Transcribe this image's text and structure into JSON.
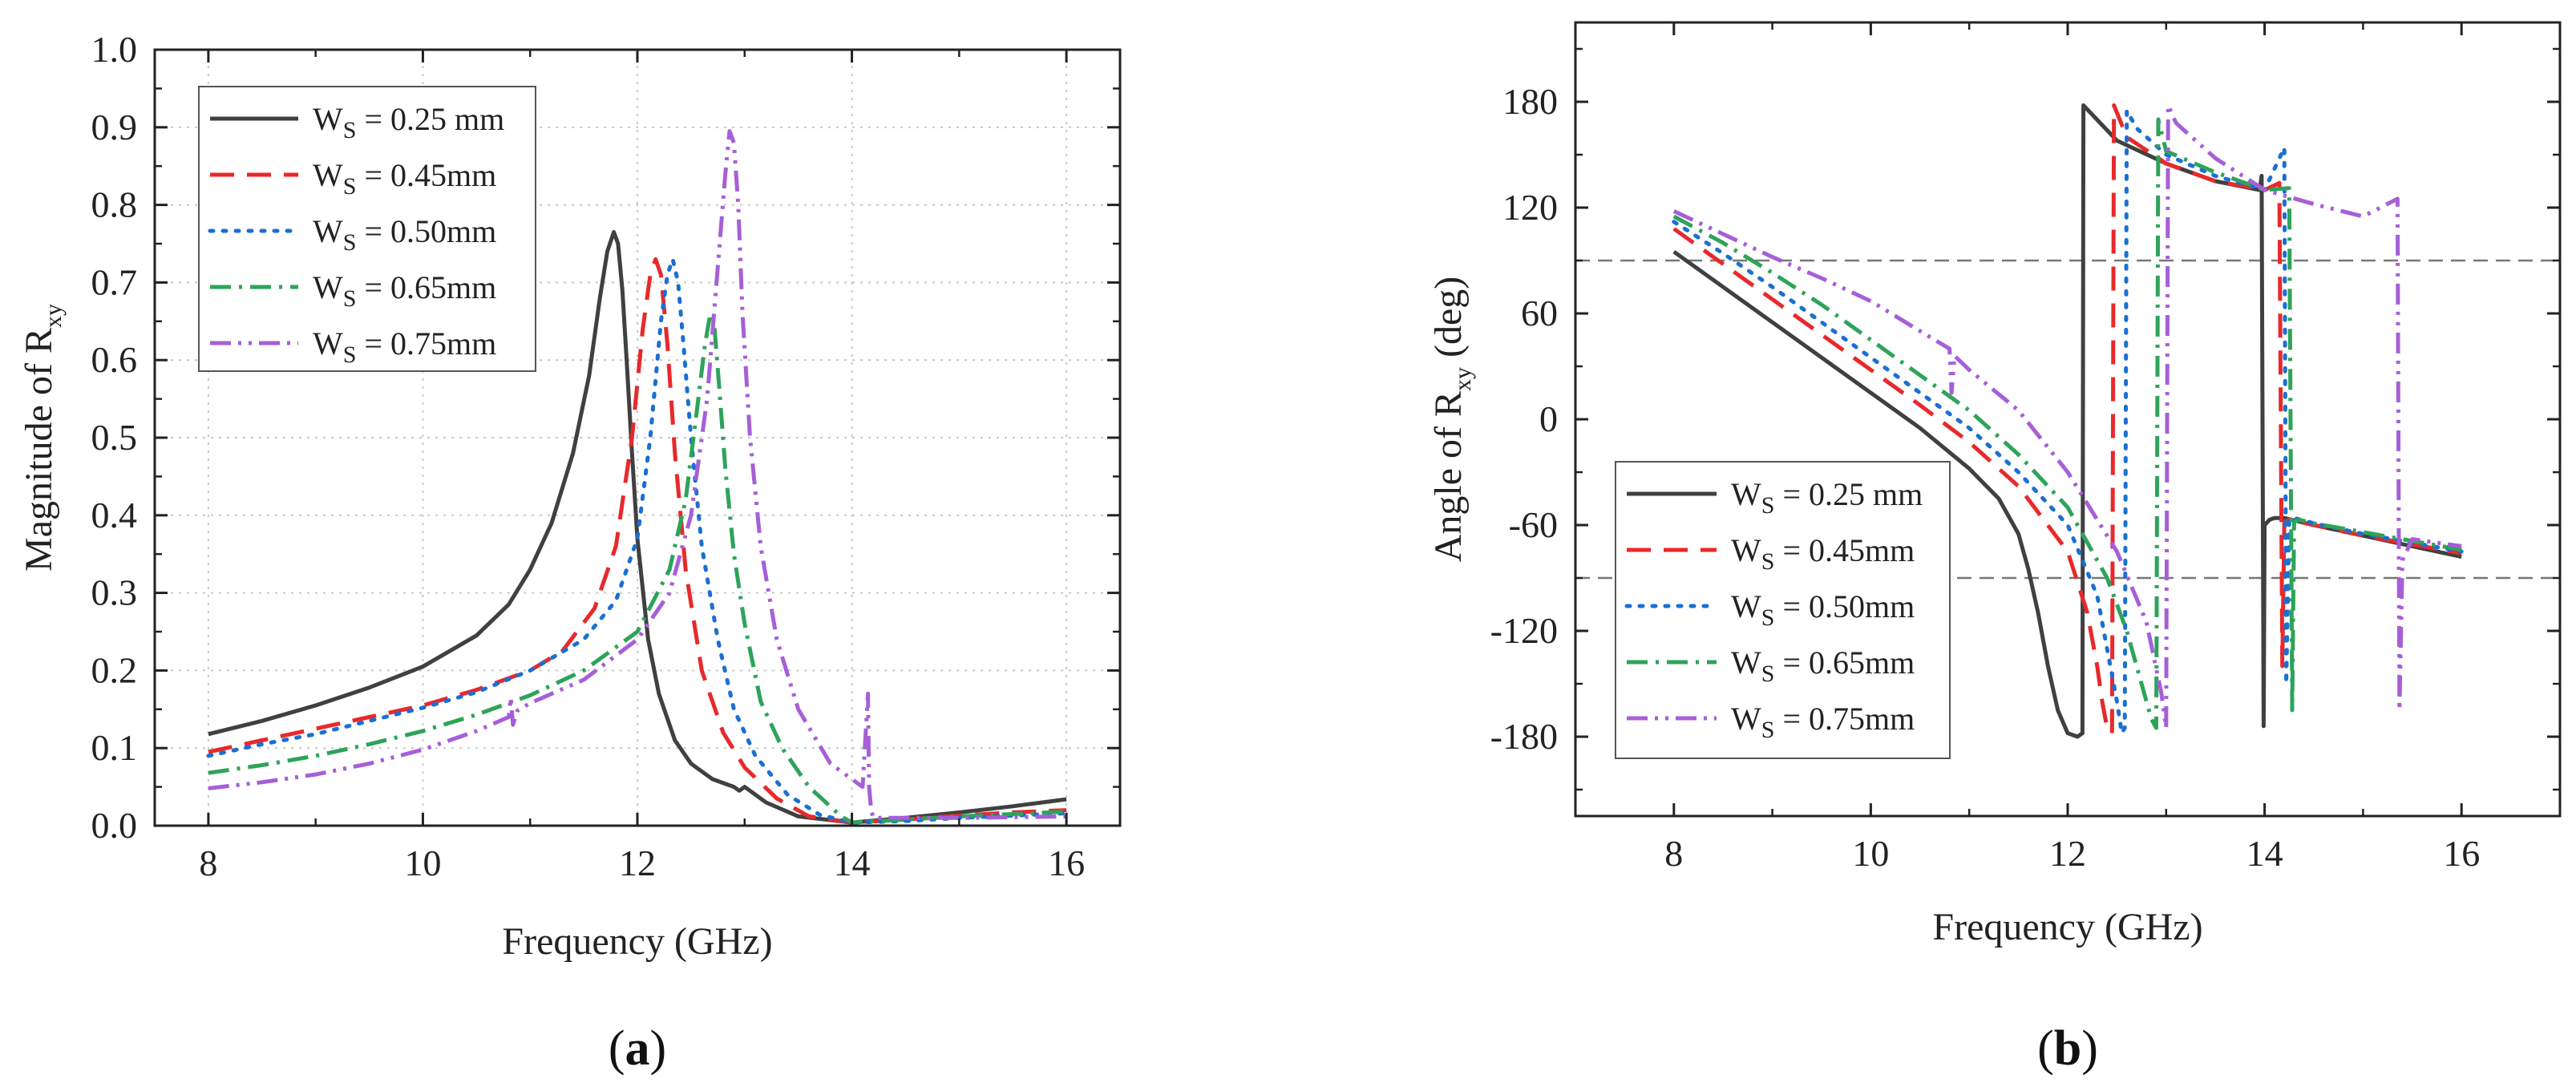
{
  "figure": {
    "panel_a_label": "a",
    "panel_b_label": "b"
  },
  "chart_data": [
    {
      "type": "line",
      "panel": "a",
      "title": "",
      "xlabel": "Frequency (GHz)",
      "ylabel_main": "Magnitude of R",
      "ylabel_sub": "xy",
      "xlim": [
        7.5,
        16.5
      ],
      "ylim": [
        0,
        1.0
      ],
      "xticks": [
        8,
        10,
        12,
        14,
        16
      ],
      "yticks": [
        0.0,
        0.1,
        0.2,
        0.3,
        0.4,
        0.5,
        0.6,
        0.7,
        0.8,
        0.9,
        1.0
      ],
      "ytick_decimals": 1,
      "grid": true,
      "legend_position": "top-left",
      "series": [
        {
          "name": "W",
          "sub": "S",
          "suffix": " = 0.25 mm",
          "color": "#404040",
          "dash": "solid",
          "x": [
            8,
            8.5,
            9,
            9.5,
            10,
            10.5,
            10.8,
            11,
            11.2,
            11.4,
            11.55,
            11.65,
            11.72,
            11.78,
            11.82,
            11.86,
            11.9,
            11.95,
            12,
            12.1,
            12.2,
            12.35,
            12.5,
            12.7,
            12.9,
            12.95,
            13.0,
            13.2,
            13.5,
            14,
            14.5,
            15,
            15.5,
            16
          ],
          "y": [
            0.118,
            0.135,
            0.155,
            0.178,
            0.205,
            0.245,
            0.285,
            0.33,
            0.39,
            0.48,
            0.58,
            0.68,
            0.74,
            0.765,
            0.75,
            0.69,
            0.6,
            0.48,
            0.37,
            0.24,
            0.17,
            0.11,
            0.08,
            0.06,
            0.05,
            0.045,
            0.05,
            0.03,
            0.012,
            0.004,
            0.01,
            0.017,
            0.025,
            0.034
          ]
        },
        {
          "name": "W",
          "sub": "S",
          "suffix": " = 0.45mm",
          "color": "#e8292b",
          "dash": "long-dash",
          "x": [
            8,
            8.5,
            9,
            9.5,
            10,
            10.5,
            11,
            11.3,
            11.6,
            11.8,
            11.95,
            12.05,
            12.12,
            12.17,
            12.22,
            12.28,
            12.35,
            12.45,
            12.6,
            12.8,
            13,
            13.3,
            13.6,
            14,
            14.5,
            15,
            15.5,
            16
          ],
          "y": [
            0.095,
            0.11,
            0.125,
            0.14,
            0.155,
            0.175,
            0.2,
            0.225,
            0.28,
            0.36,
            0.5,
            0.64,
            0.71,
            0.73,
            0.71,
            0.62,
            0.48,
            0.33,
            0.2,
            0.12,
            0.075,
            0.035,
            0.012,
            0.004,
            0.008,
            0.013,
            0.017,
            0.02
          ]
        },
        {
          "name": "W",
          "sub": "S",
          "suffix": " = 0.50mm",
          "color": "#1a6fd4",
          "dash": "dotted",
          "x": [
            8,
            8.5,
            9,
            9.5,
            10,
            10.5,
            11,
            11.5,
            11.8,
            12,
            12.12,
            12.22,
            12.28,
            12.33,
            12.38,
            12.43,
            12.5,
            12.6,
            12.75,
            12.9,
            13.1,
            13.4,
            13.7,
            14,
            14.5,
            15,
            15.5,
            16
          ],
          "y": [
            0.09,
            0.105,
            0.118,
            0.135,
            0.152,
            0.172,
            0.2,
            0.24,
            0.29,
            0.37,
            0.5,
            0.65,
            0.71,
            0.73,
            0.7,
            0.62,
            0.5,
            0.36,
            0.24,
            0.15,
            0.09,
            0.04,
            0.014,
            0.004,
            0.006,
            0.01,
            0.013,
            0.016
          ]
        },
        {
          "name": "W",
          "sub": "S",
          "suffix": " = 0.65mm",
          "color": "#2ea35a",
          "dash": "dash-dot",
          "x": [
            8,
            8.5,
            9,
            9.5,
            10,
            10.5,
            11,
            11.5,
            12,
            12.3,
            12.45,
            12.55,
            12.63,
            12.68,
            12.72,
            12.76,
            12.82,
            12.9,
            13,
            13.15,
            13.35,
            13.6,
            13.9,
            14,
            14.5,
            15,
            15.5,
            16
          ],
          "y": [
            0.068,
            0.078,
            0.09,
            0.105,
            0.122,
            0.143,
            0.168,
            0.2,
            0.25,
            0.33,
            0.42,
            0.53,
            0.62,
            0.66,
            0.64,
            0.57,
            0.46,
            0.35,
            0.26,
            0.16,
            0.1,
            0.05,
            0.012,
            0.004,
            0.008,
            0.012,
            0.015,
            0.018
          ]
        },
        {
          "name": "W",
          "sub": "S",
          "suffix": " = 0.75mm",
          "color": "#a65fd8",
          "dash": "dash-dot-dot",
          "x": [
            8,
            8.5,
            9,
            9.5,
            10,
            10.5,
            10.8,
            10.82,
            10.84,
            10.88,
            11,
            11.5,
            12,
            12.3,
            12.5,
            12.65,
            12.75,
            12.82,
            12.86,
            12.9,
            12.94,
            12.98,
            13.05,
            13.15,
            13.3,
            13.5,
            13.8,
            14.1,
            14.15,
            14.16,
            14.18,
            14.2,
            14.5,
            15,
            15.5,
            16
          ],
          "y": [
            0.048,
            0.056,
            0.066,
            0.08,
            0.098,
            0.122,
            0.14,
            0.165,
            0.13,
            0.148,
            0.158,
            0.188,
            0.24,
            0.3,
            0.4,
            0.55,
            0.72,
            0.84,
            0.895,
            0.88,
            0.8,
            0.66,
            0.5,
            0.36,
            0.24,
            0.15,
            0.08,
            0.05,
            0.17,
            0.05,
            0.02,
            0.01,
            0.01,
            0.01,
            0.011,
            0.012
          ]
        }
      ]
    },
    {
      "type": "line",
      "panel": "b",
      "title": "",
      "xlabel": "Frequency (GHz)",
      "ylabel_main": "Angle of R",
      "ylabel_sub": "xy",
      "ylabel_suffix": " (deg)",
      "xlim": [
        7,
        17
      ],
      "ylim": [
        -225,
        225
      ],
      "xticks": [
        8,
        10,
        12,
        14,
        16
      ],
      "yticks": [
        -180,
        -120,
        -60,
        0,
        60,
        120,
        180
      ],
      "ytick_decimals": 0,
      "grid": false,
      "reference_lines": [
        90,
        -90
      ],
      "legend_position": "bottom-left",
      "series": [
        {
          "name": "W",
          "sub": "S",
          "suffix": " = 0.25 mm",
          "color": "#404040",
          "dash": "solid",
          "x": [
            8,
            8.5,
            9,
            9.5,
            10,
            10.5,
            11,
            11.3,
            11.5,
            11.6,
            11.7,
            11.8,
            11.9,
            12,
            12.1,
            12.15,
            12.16,
            12.5,
            13,
            13.5,
            13.95,
            13.97,
            13.99,
            14.0,
            14.05,
            14.1,
            14.2,
            14.5,
            15,
            15.5,
            16
          ],
          "y": [
            95,
            75,
            55,
            35,
            15,
            -5,
            -28,
            -45,
            -65,
            -85,
            -110,
            -140,
            -165,
            -178,
            -180,
            -178,
            178,
            158,
            145,
            135,
            130,
            138,
            -174,
            -60,
            -57,
            -56,
            -56,
            -60,
            -66,
            -72,
            -78
          ]
        },
        {
          "name": "W",
          "sub": "S",
          "suffix": " = 0.45mm",
          "color": "#e8292b",
          "dash": "long-dash",
          "x": [
            8,
            8.5,
            9,
            9.5,
            10,
            10.5,
            11,
            11.5,
            12,
            12.2,
            12.3,
            12.35,
            12.4,
            12.45,
            12.47,
            12.6,
            13,
            13.5,
            14,
            14.15,
            14.18,
            14.2,
            14.25,
            14.5,
            15,
            15.5,
            16
          ],
          "y": [
            108,
            88,
            68,
            48,
            28,
            8,
            -13,
            -38,
            -75,
            -110,
            -140,
            -160,
            -175,
            -178,
            178,
            160,
            145,
            135,
            130,
            134,
            -140,
            -58,
            -57,
            -60,
            -66,
            -71,
            -76
          ]
        },
        {
          "name": "W",
          "sub": "S",
          "suffix": " = 0.50mm",
          "color": "#1a6fd4",
          "dash": "dotted",
          "x": [
            8,
            8.5,
            9,
            9.5,
            10,
            10.5,
            11,
            11.5,
            12,
            12.3,
            12.4,
            12.5,
            12.55,
            12.58,
            12.6,
            12.7,
            13,
            13.5,
            14,
            14.2,
            14.22,
            14.25,
            14.3,
            14.5,
            15,
            15.5,
            16
          ],
          "y": [
            112,
            94,
            75,
            55,
            35,
            15,
            -5,
            -30,
            -60,
            -100,
            -130,
            -160,
            -178,
            -175,
            175,
            165,
            150,
            138,
            130,
            154,
            -150,
            -57,
            -56,
            -59,
            -65,
            -70,
            -75
          ]
        },
        {
          "name": "W",
          "sub": "S",
          "suffix": " = 0.65mm",
          "color": "#2ea35a",
          "dash": "dash-dot",
          "x": [
            8,
            8.5,
            9,
            9.5,
            10,
            10.5,
            11,
            11.5,
            12,
            12.4,
            12.6,
            12.75,
            12.85,
            12.9,
            12.92,
            13,
            13.5,
            14,
            14.25,
            14.28,
            14.3,
            14.35,
            14.5,
            15,
            15.5,
            16
          ],
          "y": [
            115,
            100,
            83,
            65,
            45,
            25,
            5,
            -20,
            -50,
            -90,
            -120,
            -150,
            -170,
            -175,
            170,
            152,
            140,
            130,
            131,
            -165,
            -58,
            -57,
            -59,
            -64,
            -69,
            -74
          ]
        },
        {
          "name": "W",
          "sub": "S",
          "suffix": " = 0.75mm",
          "color": "#a65fd8",
          "dash": "dash-dot-dot",
          "x": [
            8,
            8.5,
            9,
            9.5,
            10,
            10.5,
            10.8,
            10.82,
            10.85,
            11,
            11.5,
            12,
            12.5,
            12.8,
            12.95,
            13.0,
            13.02,
            13.1,
            13.5,
            14,
            14.5,
            15,
            15.35,
            15.37,
            15.4,
            15.5,
            16
          ],
          "y": [
            118,
            105,
            92,
            80,
            67,
            50,
            40,
            15,
            36,
            28,
            5,
            -30,
            -75,
            -115,
            -155,
            -175,
            178,
            168,
            148,
            130,
            122,
            115,
            125,
            -165,
            -80,
            -68,
            -72
          ]
        }
      ]
    }
  ]
}
